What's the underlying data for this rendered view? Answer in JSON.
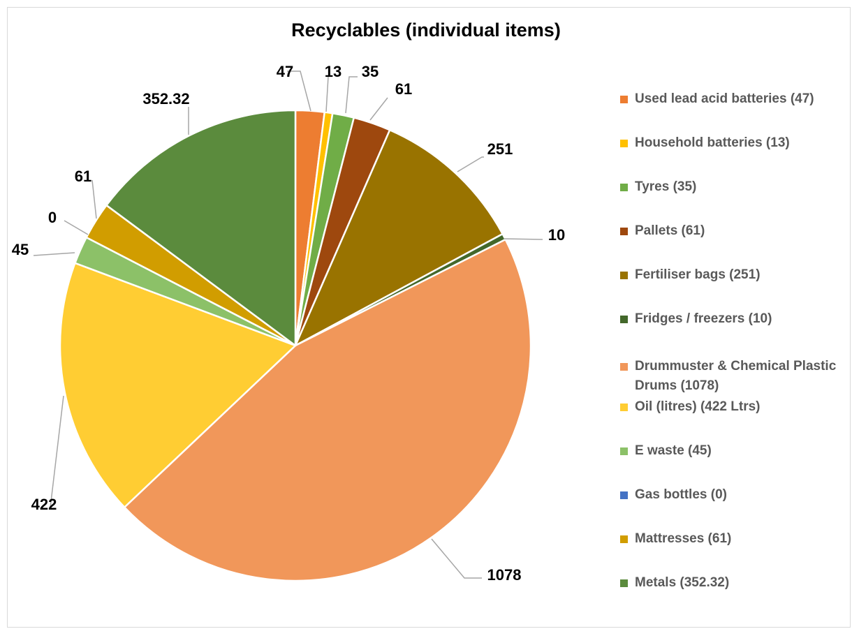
{
  "chart_data": {
    "type": "pie",
    "title": "Recyclables (individual items)",
    "categories": [
      "Used lead acid batteries  (47)",
      "Household batteries (13)",
      "Tyres (35)",
      "Pallets (61)",
      "Fertiliser bags (251)",
      "Fridges / freezers (10)",
      "Drummuster & Chemical Plastic Drums (1078)",
      "Oil (litres) (422 Ltrs)",
      "E waste (45)",
      "Gas bottles (0)",
      "Mattresses (61)",
      "Metals (352.32)"
    ],
    "values": [
      47,
      13,
      35,
      61,
      251,
      10,
      1078,
      422,
      45,
      0,
      61,
      352.32
    ],
    "data_labels": [
      "47",
      "13",
      "35",
      "61",
      "251",
      "10",
      "1078",
      "422",
      "45",
      "0",
      "61",
      "352.32"
    ],
    "colors": [
      "#ed7d31",
      "#ffc000",
      "#70ad47",
      "#9e480e",
      "#997300",
      "#43682b",
      "#f1975a",
      "#ffcd33",
      "#8cc168",
      "#4472c4",
      "#d19d00",
      "#5b8b3d"
    ],
    "legend_position": "right",
    "start_angle_deg": 0,
    "direction": "clockwise"
  }
}
